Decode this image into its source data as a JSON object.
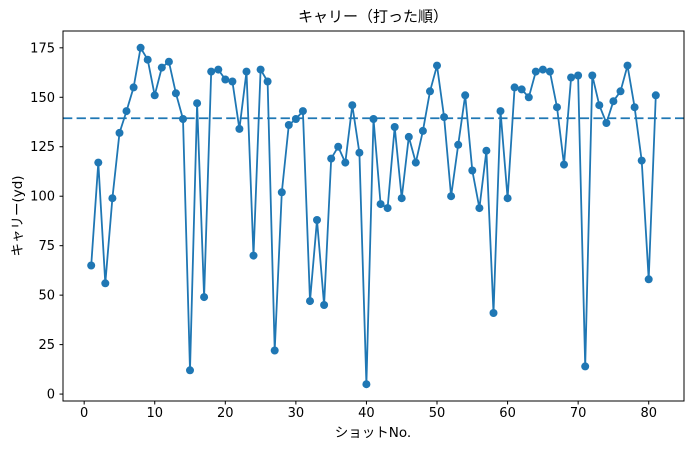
{
  "chart_data": {
    "type": "line",
    "title": "キャリー（打った順）",
    "xlabel": "ショットNo.",
    "ylabel": "キャリー(yd)",
    "x_start": 1,
    "x_step": 1,
    "values": [
      65,
      117,
      56,
      99,
      132,
      143,
      155,
      175,
      169,
      151,
      165,
      168,
      152,
      139,
      12,
      147,
      49,
      163,
      164,
      159,
      158,
      134,
      163,
      70,
      164,
      158,
      22,
      102,
      136,
      139,
      143,
      47,
      88,
      45,
      119,
      125,
      117,
      146,
      122,
      5,
      139,
      96,
      94,
      135,
      99,
      130,
      117,
      133,
      153,
      166,
      140,
      100,
      126,
      151,
      113,
      94,
      123,
      41,
      143,
      99,
      155,
      154,
      150,
      163,
      164,
      163,
      145,
      116,
      160,
      161,
      14,
      161,
      146,
      137,
      148,
      153,
      166,
      145,
      118,
      58,
      151
    ],
    "reference_line": {
      "y": 139.4,
      "style": "dashed",
      "color": "#1f77b4"
    },
    "xlim": [
      -3,
      85
    ],
    "ylim": [
      -3.5,
      183.5
    ],
    "xticks": [
      0,
      10,
      20,
      30,
      40,
      50,
      60,
      70,
      80
    ],
    "yticks": [
      0,
      25,
      50,
      75,
      100,
      125,
      150,
      175
    ],
    "line_color": "#1f77b4",
    "marker": "circle",
    "marker_size": 8,
    "grid": false,
    "legend": null
  }
}
